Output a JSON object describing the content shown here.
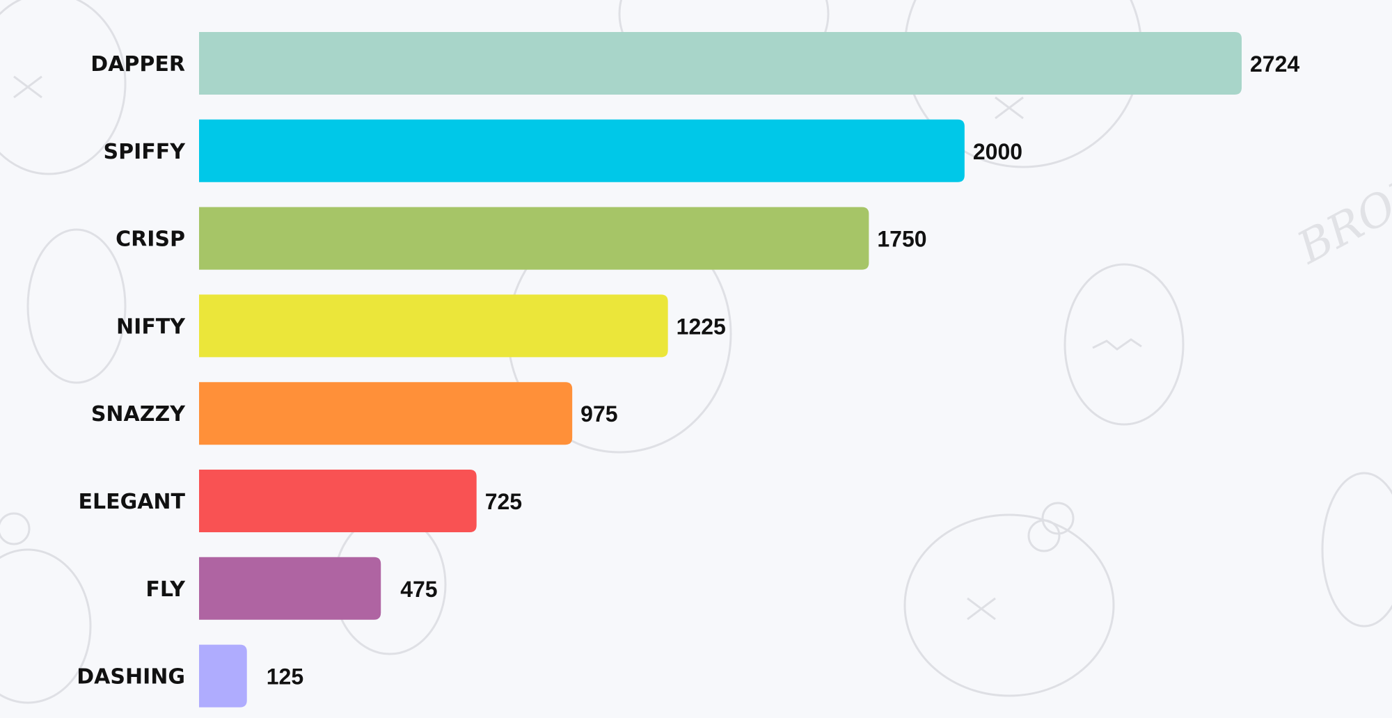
{
  "chart_data": {
    "type": "bar",
    "orientation": "horizontal",
    "categories": [
      "DAPPER",
      "SPIFFY",
      "CRISP",
      "NIFTY",
      "SNAZZY",
      "ELEGANT",
      "FLY",
      "DASHING"
    ],
    "values": [
      2724,
      2000,
      1750,
      1225,
      975,
      725,
      475,
      125
    ],
    "value_labels": [
      "2724",
      "2000",
      "1750",
      "1225",
      "975",
      "725",
      "475",
      "125"
    ],
    "colors": [
      "#a8d5c9",
      "#00c8e8",
      "#a6c567",
      "#ebe63a",
      "#ff9039",
      "#f95253",
      "#af64a2",
      "#afacfe"
    ],
    "xlim": [
      0,
      2724
    ],
    "grid": false,
    "legend": "none",
    "title": "",
    "xlabel": "",
    "ylabel": ""
  },
  "background": {
    "color": "#f7f8fb",
    "watermark_text": "BRONX"
  }
}
